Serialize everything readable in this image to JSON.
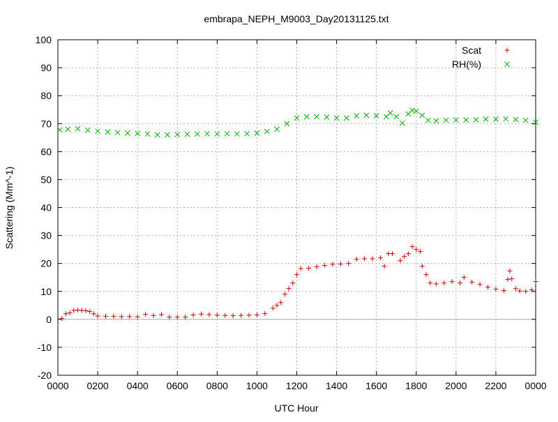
{
  "chart_data": {
    "type": "scatter",
    "title": "embrapa_NEPH_M9003_Day20131125.txt",
    "xlabel": "UTC Hour",
    "ylabel": "Scattering (Mm^-1)",
    "xlim": [
      0,
      24
    ],
    "ylim": [
      -20,
      100
    ],
    "x_tick_labels": [
      "0000",
      "0200",
      "0400",
      "0600",
      "0800",
      "1000",
      "1200",
      "1400",
      "1600",
      "1800",
      "2000",
      "2200",
      "0000"
    ],
    "y_tick_labels": [
      "-20",
      "-10",
      "0",
      "10",
      "20",
      "30",
      "40",
      "50",
      "60",
      "70",
      "80",
      "90",
      "100"
    ],
    "grid": true,
    "legend_position": "top-right",
    "series": [
      {
        "name": "Scat",
        "marker": "plus",
        "color": "#cc0000",
        "points": [
          [
            0.2,
            0.3
          ],
          [
            0.4,
            2.0
          ],
          [
            0.6,
            2.3
          ],
          [
            0.8,
            3.2
          ],
          [
            1.0,
            3.3
          ],
          [
            1.2,
            3.2
          ],
          [
            1.4,
            3.1
          ],
          [
            1.6,
            2.8
          ],
          [
            1.8,
            2.0
          ],
          [
            2.0,
            1.2
          ],
          [
            2.4,
            1.1
          ],
          [
            2.8,
            1.1
          ],
          [
            3.2,
            1.0
          ],
          [
            3.6,
            1.0
          ],
          [
            4.0,
            0.9
          ],
          [
            4.4,
            1.8
          ],
          [
            4.8,
            1.4
          ],
          [
            5.2,
            1.7
          ],
          [
            5.6,
            0.8
          ],
          [
            6.0,
            0.8
          ],
          [
            6.4,
            0.8
          ],
          [
            6.8,
            1.6
          ],
          [
            7.2,
            1.9
          ],
          [
            7.6,
            1.7
          ],
          [
            8.0,
            1.5
          ],
          [
            8.4,
            1.4
          ],
          [
            8.8,
            1.3
          ],
          [
            9.2,
            1.4
          ],
          [
            9.6,
            1.5
          ],
          [
            10.0,
            1.6
          ],
          [
            10.4,
            2.1
          ],
          [
            10.8,
            4.0
          ],
          [
            11.0,
            5.0
          ],
          [
            11.2,
            6.0
          ],
          [
            11.4,
            9.0
          ],
          [
            11.6,
            11.0
          ],
          [
            11.8,
            13.0
          ],
          [
            12.0,
            16.0
          ],
          [
            12.2,
            18.2
          ],
          [
            12.6,
            18.3
          ],
          [
            13.0,
            18.8
          ],
          [
            13.4,
            19.3
          ],
          [
            13.8,
            19.7
          ],
          [
            14.2,
            19.8
          ],
          [
            14.6,
            20.0
          ],
          [
            15.0,
            21.5
          ],
          [
            15.4,
            21.7
          ],
          [
            15.8,
            21.7
          ],
          [
            16.2,
            22.0
          ],
          [
            16.4,
            19.0
          ],
          [
            16.6,
            23.5
          ],
          [
            16.8,
            23.5
          ],
          [
            17.2,
            21.0
          ],
          [
            17.4,
            22.5
          ],
          [
            17.6,
            23.5
          ],
          [
            17.8,
            26.0
          ],
          [
            18.0,
            25.0
          ],
          [
            18.2,
            24.3
          ],
          [
            18.3,
            19.0
          ],
          [
            18.5,
            16.0
          ],
          [
            18.7,
            13.0
          ],
          [
            19.0,
            12.7
          ],
          [
            19.4,
            13.0
          ],
          [
            19.8,
            13.5
          ],
          [
            20.2,
            13.0
          ],
          [
            20.4,
            15.0
          ],
          [
            20.8,
            13.3
          ],
          [
            21.2,
            12.5
          ],
          [
            21.6,
            11.5
          ],
          [
            22.0,
            10.8
          ],
          [
            22.4,
            10.3
          ],
          [
            22.6,
            14.3
          ],
          [
            22.7,
            17.3
          ],
          [
            22.8,
            14.5
          ],
          [
            23.0,
            11.0
          ],
          [
            23.2,
            10.2
          ],
          [
            23.5,
            10.0
          ],
          [
            23.8,
            10.5
          ],
          [
            24.0,
            13.5
          ]
        ]
      },
      {
        "name": "RH(%)",
        "marker": "cross",
        "color": "#00aa00",
        "points": [
          [
            0.1,
            67.8
          ],
          [
            0.5,
            68.0
          ],
          [
            1.0,
            68.2
          ],
          [
            1.5,
            67.7
          ],
          [
            2.0,
            67.3
          ],
          [
            2.5,
            67.0
          ],
          [
            3.0,
            66.8
          ],
          [
            3.5,
            66.6
          ],
          [
            4.0,
            66.5
          ],
          [
            4.5,
            66.3
          ],
          [
            5.0,
            66.0
          ],
          [
            5.5,
            66.0
          ],
          [
            6.0,
            66.1
          ],
          [
            6.5,
            66.2
          ],
          [
            7.0,
            66.3
          ],
          [
            7.5,
            66.4
          ],
          [
            8.0,
            66.3
          ],
          [
            8.5,
            66.4
          ],
          [
            9.0,
            66.3
          ],
          [
            9.5,
            66.4
          ],
          [
            10.0,
            66.6
          ],
          [
            10.5,
            67.2
          ],
          [
            11.0,
            68.0
          ],
          [
            11.5,
            70.0
          ],
          [
            12.0,
            72.0
          ],
          [
            12.5,
            72.5
          ],
          [
            13.0,
            72.5
          ],
          [
            13.5,
            72.3
          ],
          [
            14.0,
            72.0
          ],
          [
            14.5,
            72.0
          ],
          [
            15.0,
            72.8
          ],
          [
            15.5,
            73.0
          ],
          [
            16.0,
            72.8
          ],
          [
            16.5,
            72.5
          ],
          [
            16.7,
            73.8
          ],
          [
            17.0,
            72.5
          ],
          [
            17.3,
            70.2
          ],
          [
            17.6,
            73.5
          ],
          [
            17.8,
            74.8
          ],
          [
            18.0,
            74.5
          ],
          [
            18.3,
            73.0
          ],
          [
            18.6,
            71.2
          ],
          [
            19.0,
            71.0
          ],
          [
            19.5,
            71.2
          ],
          [
            20.0,
            71.3
          ],
          [
            20.5,
            71.3
          ],
          [
            21.0,
            71.4
          ],
          [
            21.5,
            71.6
          ],
          [
            22.0,
            71.6
          ],
          [
            22.5,
            71.7
          ],
          [
            23.0,
            71.5
          ],
          [
            23.5,
            71.2
          ],
          [
            24.0,
            70.5
          ]
        ]
      }
    ]
  }
}
